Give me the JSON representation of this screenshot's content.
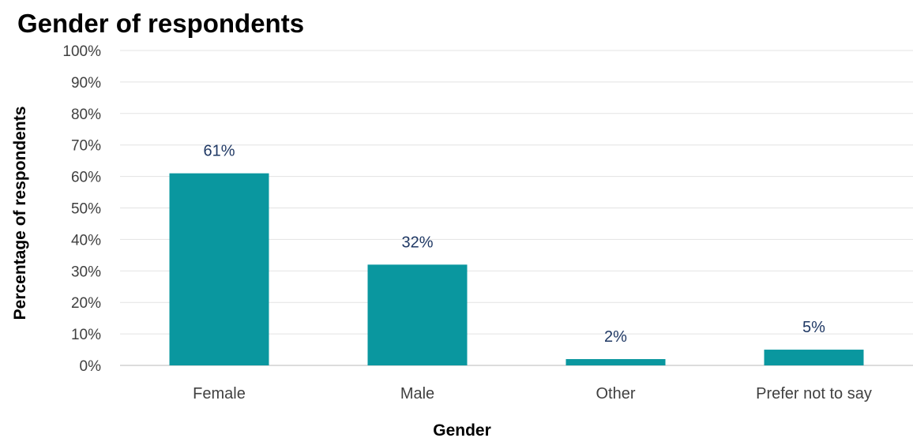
{
  "chart_data": {
    "type": "bar",
    "title": "Gender of respondents",
    "xlabel": "Gender",
    "ylabel": "Percentage of respondents",
    "categories": [
      "Female",
      "Male",
      "Other",
      "Prefer not to say"
    ],
    "values": [
      61,
      32,
      2,
      5
    ],
    "data_labels": [
      "61%",
      "32%",
      "2%",
      "5%"
    ],
    "y_ticks": [
      "0%",
      "10%",
      "20%",
      "30%",
      "40%",
      "50%",
      "60%",
      "70%",
      "80%",
      "90%",
      "100%"
    ],
    "ylim": [
      0,
      100
    ],
    "grid": true,
    "legend": "none",
    "colors": {
      "bar": "#0a979f",
      "data_label": "#1f3864"
    }
  }
}
